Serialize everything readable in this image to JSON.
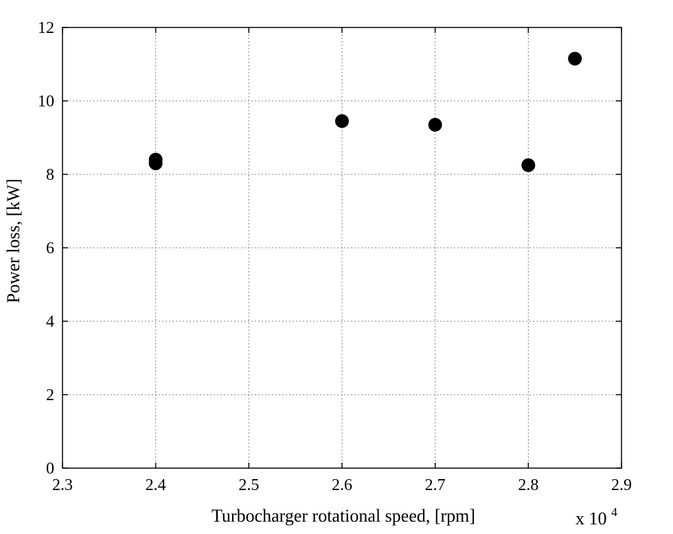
{
  "chart_data": {
    "type": "scatter",
    "title": "",
    "xlabel": "Turbocharger rotational speed, [rpm]",
    "ylabel": "Power loss, [kW]",
    "x_multiplier_label": "x 10",
    "x_multiplier_exponent": "4",
    "xlim": [
      2.3,
      2.9
    ],
    "ylim": [
      0,
      12
    ],
    "xticks": [
      2.3,
      2.4,
      2.5,
      2.6,
      2.7,
      2.8,
      2.9
    ],
    "xtick_labels": [
      "2.3",
      "2.4",
      "2.5",
      "2.6",
      "2.7",
      "2.8",
      "2.9"
    ],
    "yticks": [
      0,
      2,
      4,
      6,
      8,
      10,
      12
    ],
    "ytick_labels": [
      "0",
      "2",
      "4",
      "6",
      "8",
      "10",
      "12"
    ],
    "grid": true,
    "series": [
      {
        "name": "Power loss",
        "marker": "circle",
        "color": "#000000",
        "x": [
          2.4,
          2.4,
          2.6,
          2.7,
          2.8,
          2.85
        ],
        "y": [
          8.4,
          8.3,
          9.45,
          9.35,
          8.25,
          11.15
        ]
      }
    ]
  }
}
